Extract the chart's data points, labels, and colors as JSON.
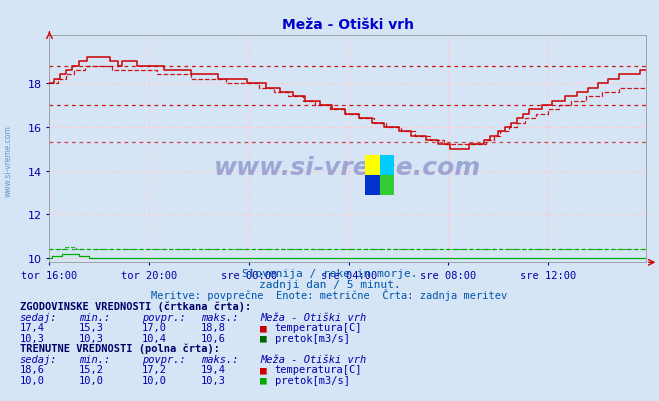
{
  "title": "Meža - Otiški vrh",
  "bg_color": "#d5e5f5",
  "x_labels": [
    "tor 16:00",
    "tor 20:00",
    "sre 00:00",
    "sre 04:00",
    "sre 08:00",
    "sre 12:00"
  ],
  "x_ticks": [
    0,
    48,
    96,
    144,
    192,
    240
  ],
  "y_ticks": [
    10,
    12,
    14,
    16,
    18
  ],
  "ylim": [
    9.8,
    20.2
  ],
  "xlim": [
    0,
    287
  ],
  "subtitle1": "Slovenija / reke in morje.",
  "subtitle2": "zadnji dan / 5 minut.",
  "subtitle3": "Meritve: povprečne  Enote: metrične  Črta: zadnja meritev",
  "watermark": "www.si-vreme.com",
  "temp_color": "#cc0000",
  "flow_color": "#00aa00",
  "hist_temp_avg": 17.0,
  "hist_temp_min": 15.3,
  "hist_temp_max": 18.8,
  "hist_flow_avg": 10.4,
  "label_color": "#0000aa",
  "title_color": "#0000cc"
}
